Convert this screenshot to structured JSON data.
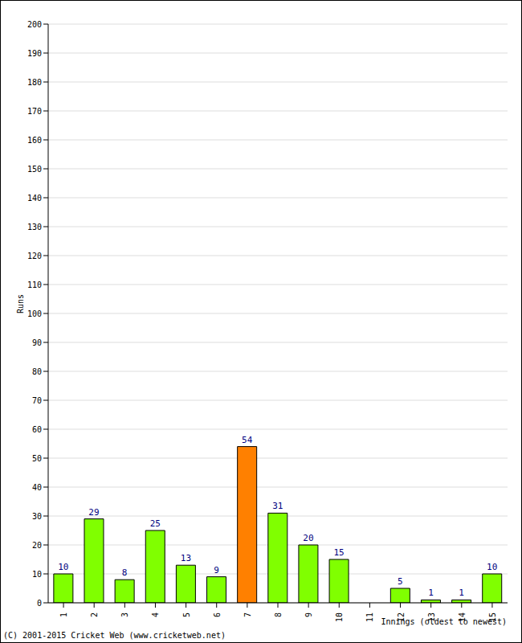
{
  "chart_data": {
    "type": "bar",
    "categories": [
      "1",
      "2",
      "3",
      "4",
      "5",
      "6",
      "7",
      "8",
      "9",
      "10",
      "11",
      "12",
      "13",
      "14",
      "15"
    ],
    "values": [
      10,
      29,
      8,
      25,
      13,
      9,
      54,
      31,
      20,
      15,
      0,
      5,
      1,
      1,
      10
    ],
    "colors": [
      "#80ff00",
      "#80ff00",
      "#80ff00",
      "#80ff00",
      "#80ff00",
      "#80ff00",
      "#ff8000",
      "#80ff00",
      "#80ff00",
      "#80ff00",
      "#80ff00",
      "#80ff00",
      "#80ff00",
      "#80ff00",
      "#80ff00"
    ],
    "ylim": [
      0,
      200
    ],
    "yticks": [
      0,
      10,
      20,
      30,
      40,
      50,
      60,
      70,
      80,
      90,
      100,
      110,
      120,
      130,
      140,
      150,
      160,
      170,
      180,
      190,
      200
    ],
    "grid": true,
    "data_labels": true,
    "xlabel": "Innings (oldest to newest)",
    "ylabel": "Runs",
    "annotation": "(C) 2001-2015 Cricket Web (www.cricketweb.net)"
  }
}
